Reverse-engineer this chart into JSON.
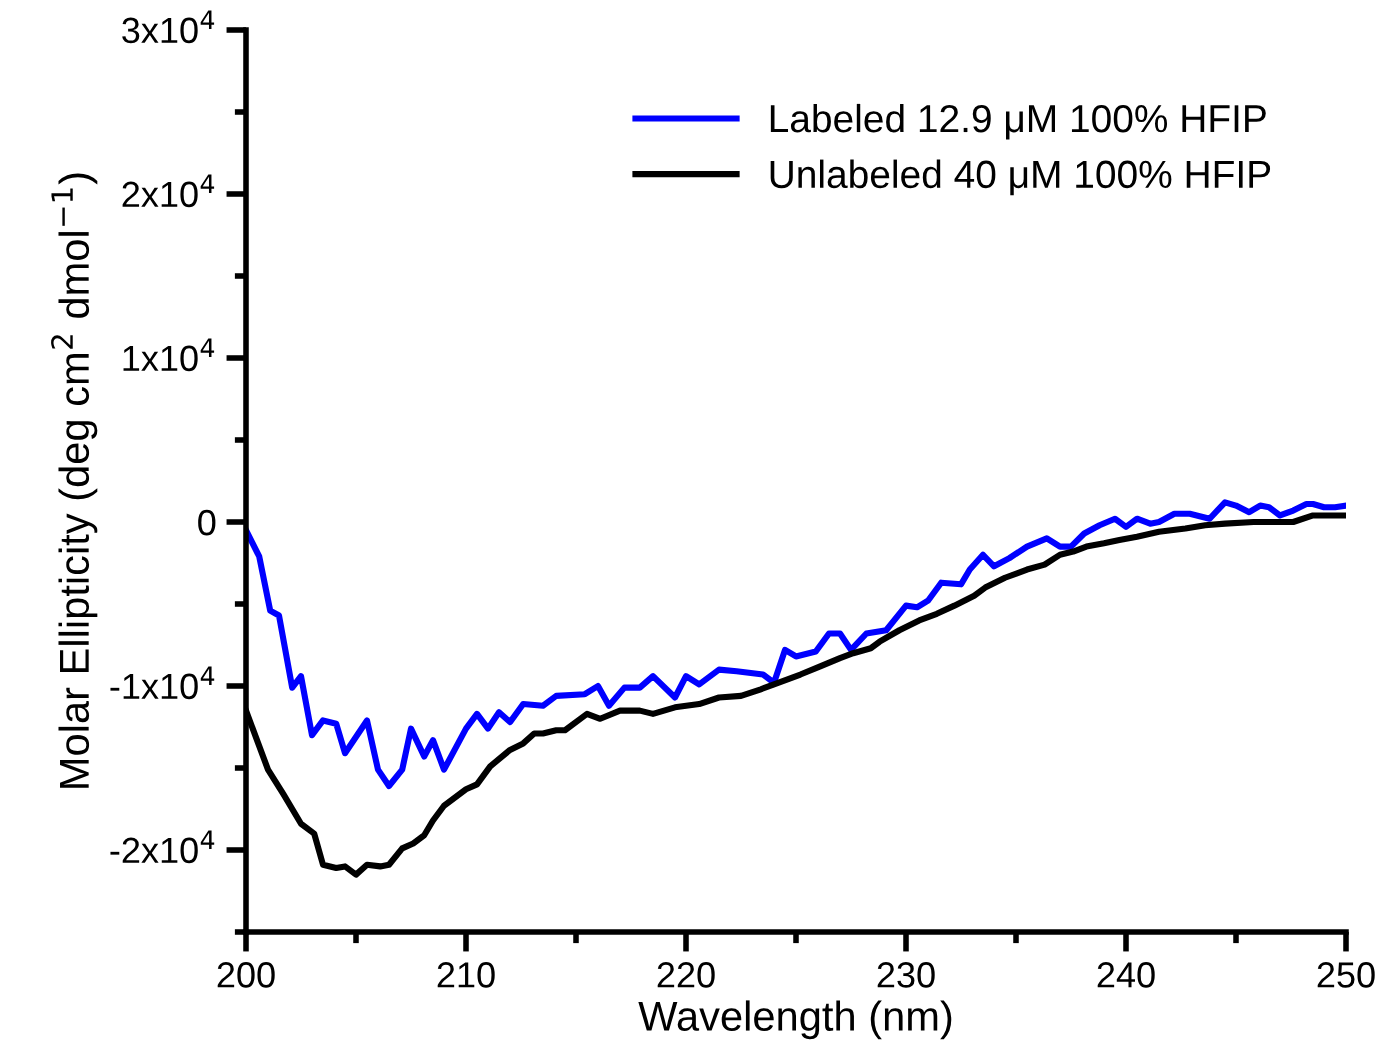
{
  "chart_data": {
    "type": "line",
    "xlabel": "Wavelength (nm)",
    "ylabel": "Molar Ellipticity (deg cm$^{2}$ dmol$^{−1}$)",
    "xlim": [
      200,
      250
    ],
    "ylim": [
      -25000,
      30000
    ],
    "xticks": [
      200,
      {
        "value": 205,
        "label": null
      },
      210,
      {
        "value": 215,
        "label": null
      },
      220,
      {
        "value": 225,
        "label": null
      },
      230,
      {
        "value": 235,
        "label": null
      },
      240,
      {
        "value": 245,
        "label": null
      },
      250
    ],
    "yticks": [
      {
        "value": -25000,
        "label": null
      },
      {
        "value": -20000,
        "label": "-2x10$^{4}$"
      },
      {
        "value": -15000,
        "label": null
      },
      {
        "value": -10000,
        "label": "-1x10$^{4}$"
      },
      {
        "value": -5000,
        "label": null
      },
      0,
      {
        "value": 5000,
        "label": null
      },
      {
        "value": 10000,
        "label": "1x10$^{4}$"
      },
      {
        "value": 15000,
        "label": null
      },
      {
        "value": 20000,
        "label": "2x10$^{4}$"
      },
      {
        "value": 25000,
        "label": null
      },
      {
        "value": 30000,
        "label": "3x10$^{4}$"
      }
    ],
    "grid": false,
    "legend": "top right",
    "marker": "none",
    "line_style": "solid",
    "series": [
      {
        "name": "Labeled 12.9 μM 100% HFIP",
        "color": "#0000ff",
        "x": [
          200,
          200.6,
          201.1,
          201.5,
          202.1,
          202.5,
          203,
          203.5,
          204.1,
          204.5,
          205.5,
          206,
          206.5,
          207.1,
          207.5,
          208.1,
          208.5,
          209,
          210,
          210.5,
          211,
          211.5,
          212,
          212.6,
          213.5,
          214.1,
          215.4,
          216,
          216.5,
          217.2,
          217.9,
          218.5,
          219.5,
          220,
          220.6,
          221.5,
          222.3,
          223.5,
          224,
          224.5,
          225,
          225.9,
          226.5,
          227,
          227.5,
          228.2,
          229.1,
          230,
          230.5,
          231,
          231.6,
          232.5,
          232.9,
          233.5,
          234,
          234.7,
          235.5,
          236.4,
          237,
          237.5,
          238.1,
          238.8,
          239.5,
          240,
          240.5,
          241.1,
          241.5,
          242.2,
          242.9,
          243.8,
          244.5,
          245,
          245.6,
          246.1,
          246.5,
          247,
          247.6,
          248.2,
          248.5,
          249,
          249.5,
          250
        ],
        "values": [
          -500,
          -2100,
          -5400,
          -5700,
          -10100,
          -9400,
          -13000,
          -12100,
          -12300,
          -14100,
          -12100,
          -15100,
          -16100,
          -15100,
          -12600,
          -14300,
          -13300,
          -15100,
          -12600,
          -11700,
          -12600,
          -11600,
          -12200,
          -11100,
          -11200,
          -10600,
          -10500,
          -10000,
          -11200,
          -10100,
          -10100,
          -9400,
          -10700,
          -9400,
          -9900,
          -9000,
          -9100,
          -9300,
          -9800,
          -7800,
          -8200,
          -7900,
          -6800,
          -6800,
          -7800,
          -6800,
          -6600,
          -5100,
          -5200,
          -4800,
          -3700,
          -3800,
          -2900,
          -2000,
          -2700,
          -2200,
          -1500,
          -1000,
          -1500,
          -1500,
          -700,
          -200,
          200,
          -300,
          200,
          -100,
          0,
          500,
          500,
          200,
          1200,
          1000,
          600,
          1000,
          900,
          400,
          700,
          1100,
          1100,
          900,
          900,
          1000
        ]
      },
      {
        "name": "Unlabeled 40 μM 100% HFIP",
        "color": "#000000",
        "x": [
          200,
          200.5,
          201,
          201.7,
          202.5,
          203.1,
          203.5,
          204.1,
          204.5,
          205,
          205.5,
          206.1,
          206.5,
          207.1,
          207.6,
          208.1,
          208.5,
          209,
          209.5,
          210,
          210.5,
          211.1,
          212,
          212.6,
          213.1,
          213.5,
          214.1,
          214.5,
          215.5,
          216.1,
          217,
          217.9,
          218.5,
          219.5,
          220.6,
          221.5,
          222.5,
          223.4,
          224,
          225.2,
          226.1,
          227,
          227.6,
          228.4,
          228.8,
          229.7,
          230.6,
          231.4,
          232.2,
          233.1,
          233.6,
          234.5,
          235.5,
          236.3,
          237,
          237.6,
          238.2,
          239,
          239.7,
          240.5,
          241.5,
          242.7,
          243.6,
          244.5,
          245.8,
          247,
          247.6,
          248.5,
          250
        ],
        "values": [
          -11500,
          -13300,
          -15100,
          -16600,
          -18400,
          -19000,
          -20900,
          -21100,
          -21000,
          -21500,
          -20900,
          -21000,
          -20900,
          -19900,
          -19600,
          -19100,
          -18200,
          -17300,
          -16800,
          -16300,
          -16000,
          -14900,
          -13900,
          -13500,
          -12900,
          -12900,
          -12700,
          -12700,
          -11700,
          -12000,
          -11500,
          -11500,
          -11700,
          -11300,
          -11100,
          -10700,
          -10600,
          -10200,
          -9900,
          -9300,
          -8800,
          -8300,
          -8000,
          -7700,
          -7300,
          -6600,
          -6000,
          -5600,
          -5100,
          -4500,
          -4000,
          -3400,
          -2900,
          -2600,
          -2000,
          -1800,
          -1500,
          -1300,
          -1100,
          -900,
          -600,
          -400,
          -200,
          -100,
          0,
          0,
          0,
          400,
          400
        ]
      }
    ]
  }
}
